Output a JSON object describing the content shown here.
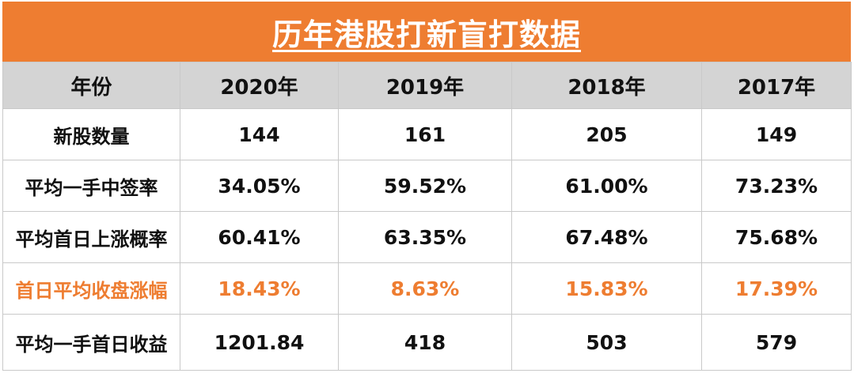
{
  "title": "历年港股打新盲打数据",
  "header": {
    "label": "年份",
    "years": [
      "2020年",
      "2019年",
      "2018年",
      "2017年"
    ]
  },
  "rows": [
    {
      "label": "新股数量",
      "values": [
        "144",
        "161",
        "205",
        "149"
      ]
    },
    {
      "label": "平均一手中签率",
      "values": [
        "34.05%",
        "59.52%",
        "61.00%",
        "73.23%"
      ]
    },
    {
      "label": "平均首日上涨概率",
      "values": [
        "60.41%",
        "63.35%",
        "67.48%",
        "75.68%"
      ]
    },
    {
      "label": "首日平均收盘涨幅",
      "values": [
        "18.43%",
        "8.63%",
        "15.83%",
        "17.39%"
      ]
    },
    {
      "label": "平均一手首日收益",
      "values": [
        "1201.84",
        "418",
        "503",
        "579"
      ]
    }
  ],
  "colors": {
    "title_background": "#ee7d31",
    "title_text": "#ffffff",
    "header_background": "#d4d4d4",
    "highlight_text": "#ee7d31",
    "border": "#c9c9c9"
  }
}
